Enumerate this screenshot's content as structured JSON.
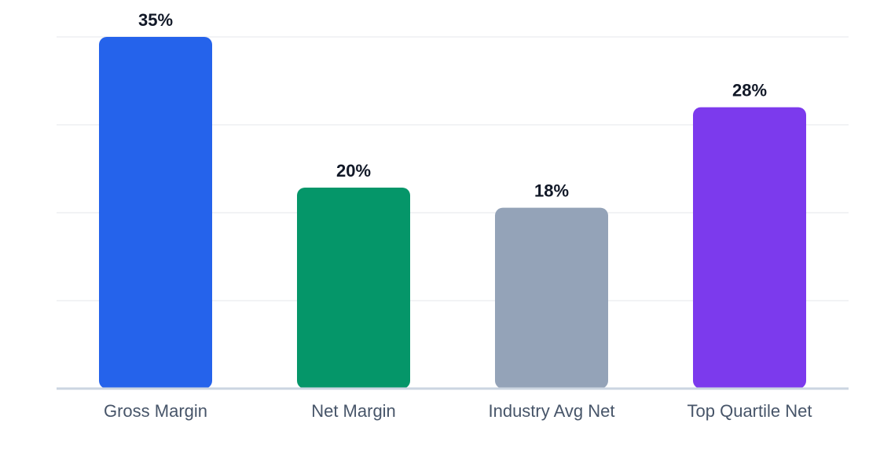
{
  "chart_data": {
    "type": "bar",
    "categories": [
      "Gross Margin",
      "Net Margin",
      "Industry Avg Net",
      "Top Quartile Net"
    ],
    "values": [
      35,
      20,
      18,
      28
    ],
    "value_labels": [
      "35%",
      "20%",
      "18%",
      "28%"
    ],
    "colors": [
      "#2563eb",
      "#059669",
      "#94a3b8",
      "#7c3aed"
    ],
    "ylim": [
      0,
      35
    ],
    "grid": true,
    "title": "",
    "xlabel": "",
    "ylabel": ""
  }
}
